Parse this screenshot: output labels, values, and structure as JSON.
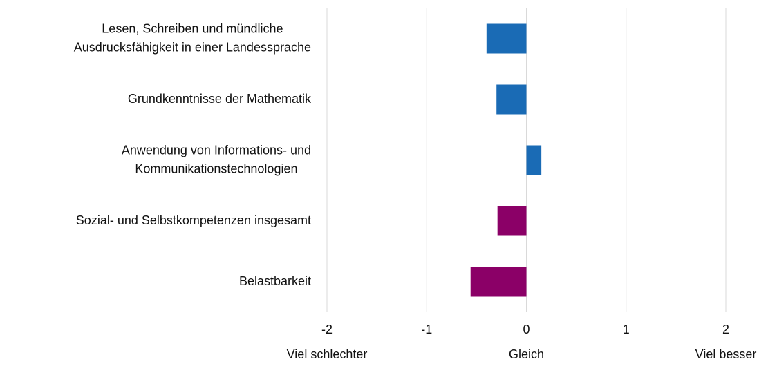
{
  "chart_data": {
    "type": "barh",
    "categories": [
      [
        "Lesen, Schreiben und mündliche",
        "Ausdrucksfähigkeit in einer Landessprache"
      ],
      [
        "Grundkenntnisse der Mathematik"
      ],
      [
        "Anwendung von Informations- und",
        "Kommunikationstechnologien"
      ],
      [
        "Sozial- und Selbstkompetenzen insgesamt"
      ],
      [
        "Belastbarkeit"
      ]
    ],
    "values": [
      -0.4,
      -0.3,
      0.15,
      -0.29,
      -0.56
    ],
    "colors": [
      "#1a6bb5",
      "#1a6bb5",
      "#1a6bb5",
      "#8b0067",
      "#8b0067"
    ],
    "xlim": [
      -2,
      2
    ],
    "xticks": [
      -2,
      -1,
      0,
      1,
      2
    ],
    "grid": true,
    "x_annotations": [
      {
        "value": -2,
        "label": "Viel schlechter"
      },
      {
        "value": 0,
        "label": "Gleich"
      },
      {
        "value": 2,
        "label": "Viel besser"
      }
    ]
  }
}
